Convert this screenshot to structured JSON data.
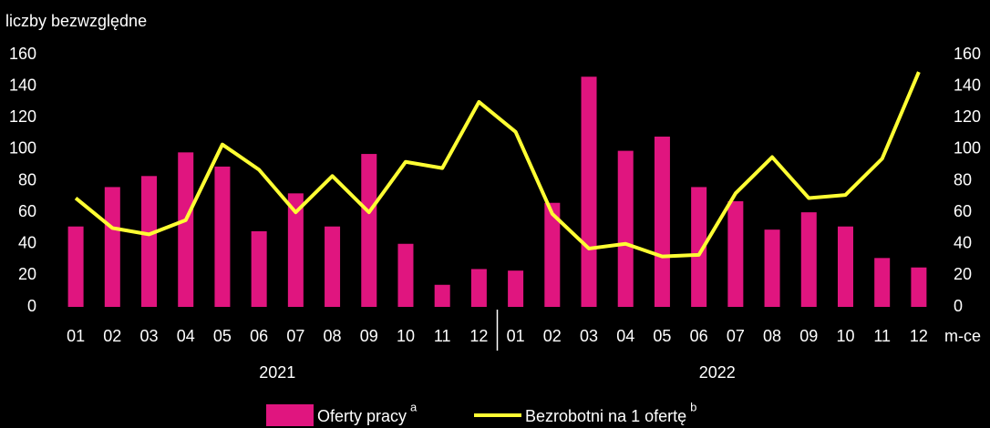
{
  "chart_data": {
    "type": "bar_line",
    "y_axis_label": "liczby bezwzględne",
    "x_axis_label": "m-ce",
    "categories": [
      "01",
      "02",
      "03",
      "04",
      "05",
      "06",
      "07",
      "08",
      "09",
      "10",
      "11",
      "12",
      "01",
      "02",
      "03",
      "04",
      "05",
      "06",
      "07",
      "08",
      "09",
      "10",
      "11",
      "12"
    ],
    "groups": [
      {
        "label": "2021",
        "size": 12
      },
      {
        "label": "2022",
        "size": 12
      }
    ],
    "series": [
      {
        "name": "Oferty pracy",
        "superscript": "a",
        "type": "bar",
        "color": "#e0157f",
        "values": [
          51,
          76,
          83,
          98,
          89,
          48,
          72,
          51,
          97,
          40,
          14,
          24,
          23,
          66,
          146,
          99,
          108,
          76,
          67,
          49,
          60,
          51,
          31,
          25
        ]
      },
      {
        "name": "Bezrobotni na 1 ofertę",
        "superscript": "b",
        "type": "line",
        "color": "#ffff33",
        "axis": "y2",
        "values": [
          69,
          50,
          46,
          55,
          103,
          87,
          60,
          83,
          60,
          92,
          88,
          130,
          111,
          59,
          37,
          40,
          32,
          33,
          72,
          95,
          69,
          71,
          94,
          149
        ]
      }
    ],
    "ylim": [
      0,
      160
    ],
    "yticks": [
      0,
      20,
      40,
      60,
      80,
      100,
      120,
      140,
      160
    ],
    "y2lim": [
      0,
      160
    ],
    "y2ticks": [
      0,
      20,
      40,
      60,
      80,
      100,
      120,
      140,
      160
    ],
    "grid": false
  }
}
